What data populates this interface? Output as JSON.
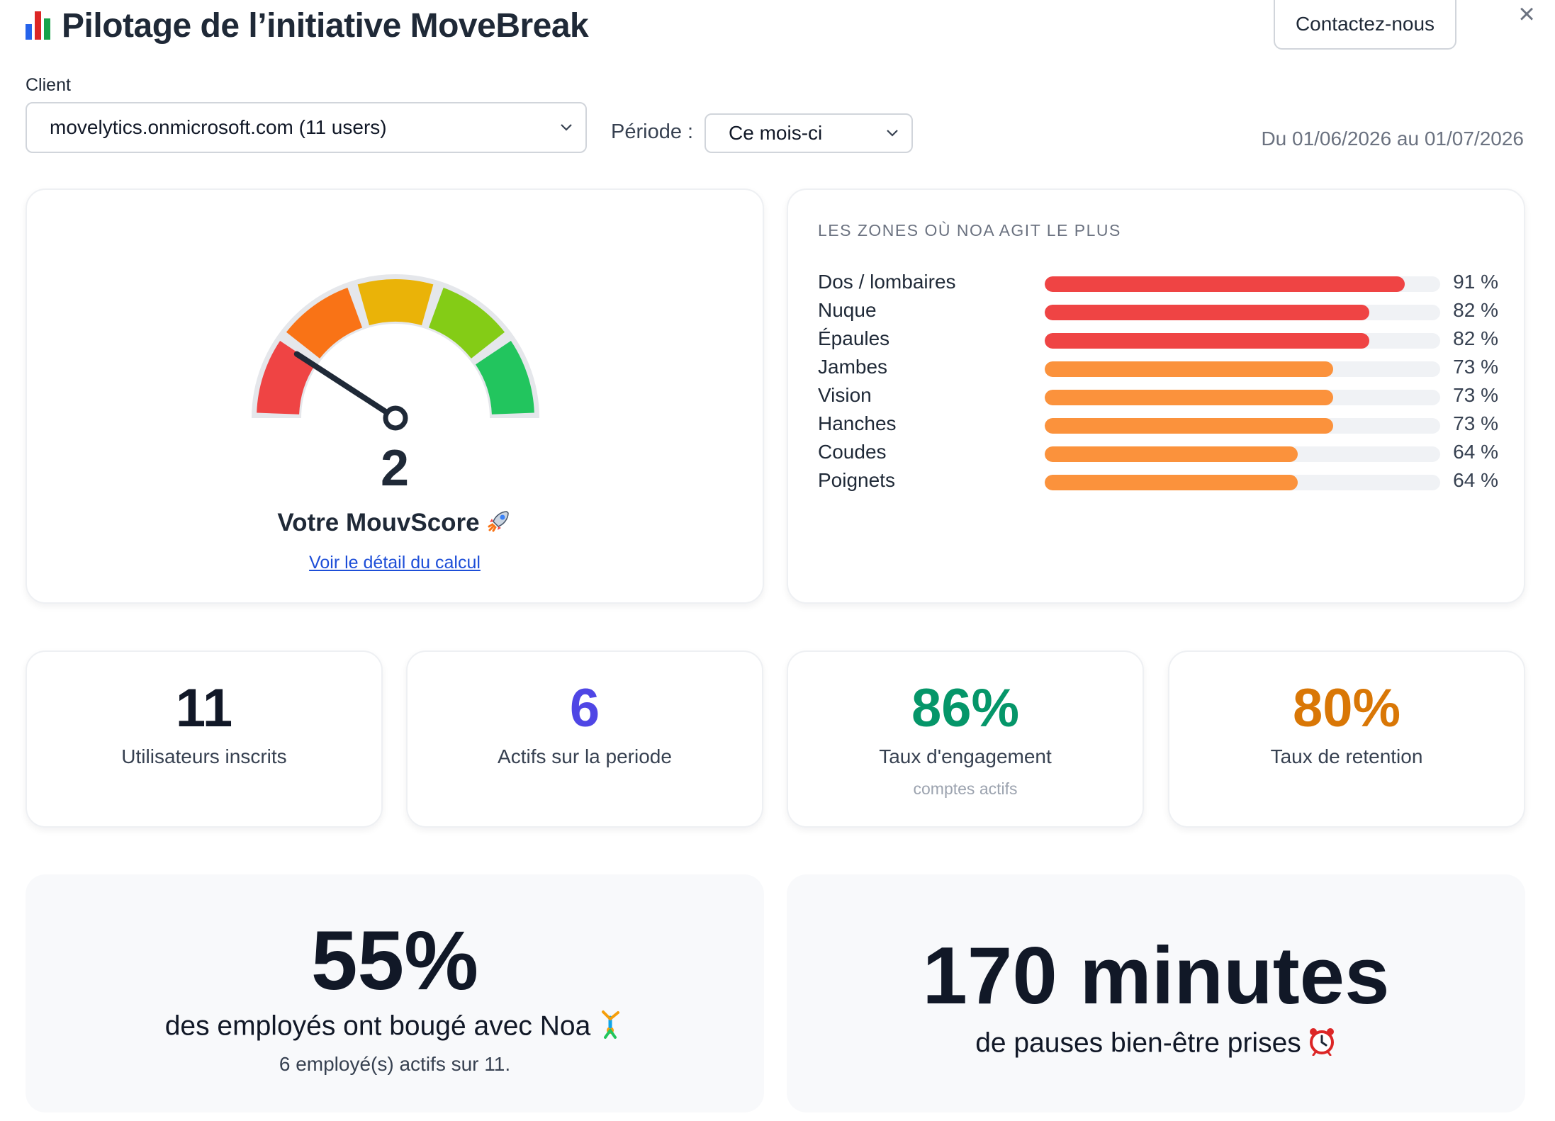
{
  "header": {
    "title": "Pilotage de l’initiative MoveBreak",
    "contact_label": "Contactez-nous",
    "close_symbol": "×"
  },
  "filters": {
    "client_label": "Client",
    "client_value": "movelytics.onmicrosoft.com (11 users)",
    "period_label": "Période :",
    "period_value": "Ce mois-ci",
    "date_range": "Du 01/06/2026 au 01/07/2026"
  },
  "gauge": {
    "score": "2",
    "score_numeric": 2,
    "score_min": 0,
    "score_max": 10,
    "label": "Votre MouvScore",
    "link_label": "Voir le détail du calcul",
    "segment_colors": [
      "#ef4444",
      "#f97316",
      "#eab308",
      "#84cc16",
      "#22c55e"
    ]
  },
  "zones": {
    "title": "LES ZONES OÙ NOA AGIT LE PLUS",
    "items": [
      {
        "name": "Dos / lombaires",
        "value": 91,
        "pct_label": "91 %",
        "color": "#ef4444"
      },
      {
        "name": "Nuque",
        "value": 82,
        "pct_label": "82 %",
        "color": "#ef4444"
      },
      {
        "name": "Épaules",
        "value": 82,
        "pct_label": "82 %",
        "color": "#ef4444"
      },
      {
        "name": "Jambes",
        "value": 73,
        "pct_label": "73 %",
        "color": "#fb923c"
      },
      {
        "name": "Vision",
        "value": 73,
        "pct_label": "73 %",
        "color": "#fb923c"
      },
      {
        "name": "Hanches",
        "value": 73,
        "pct_label": "73 %",
        "color": "#fb923c"
      },
      {
        "name": "Coudes",
        "value": 64,
        "pct_label": "64 %",
        "color": "#fb923c"
      },
      {
        "name": "Poignets",
        "value": 64,
        "pct_label": "64 %",
        "color": "#fb923c"
      }
    ]
  },
  "stats": [
    {
      "value": "11",
      "label": "Utilisateurs inscrits",
      "sub": "",
      "color": "#111827"
    },
    {
      "value": "6",
      "label": "Actifs sur la periode",
      "sub": "",
      "color": "#4f46e5"
    },
    {
      "value": "86%",
      "label": "Taux d'engagement",
      "sub": "comptes actifs",
      "color": "#059669"
    },
    {
      "value": "80%",
      "label": "Taux de retention",
      "sub": "",
      "color": "#d97706"
    }
  ],
  "highlights": {
    "moved_value": "55%",
    "moved_label": "des employés ont bougé avec Noa",
    "moved_sub": "6 employé(s) actifs sur 11.",
    "minutes_value": "170 minutes",
    "minutes_label": "de pauses bien-être prises"
  },
  "icons": {
    "title": "bar-chart-icon",
    "score": "rocket-icon",
    "moved": "gymnast-icon",
    "minutes": "alarm-clock-icon"
  }
}
